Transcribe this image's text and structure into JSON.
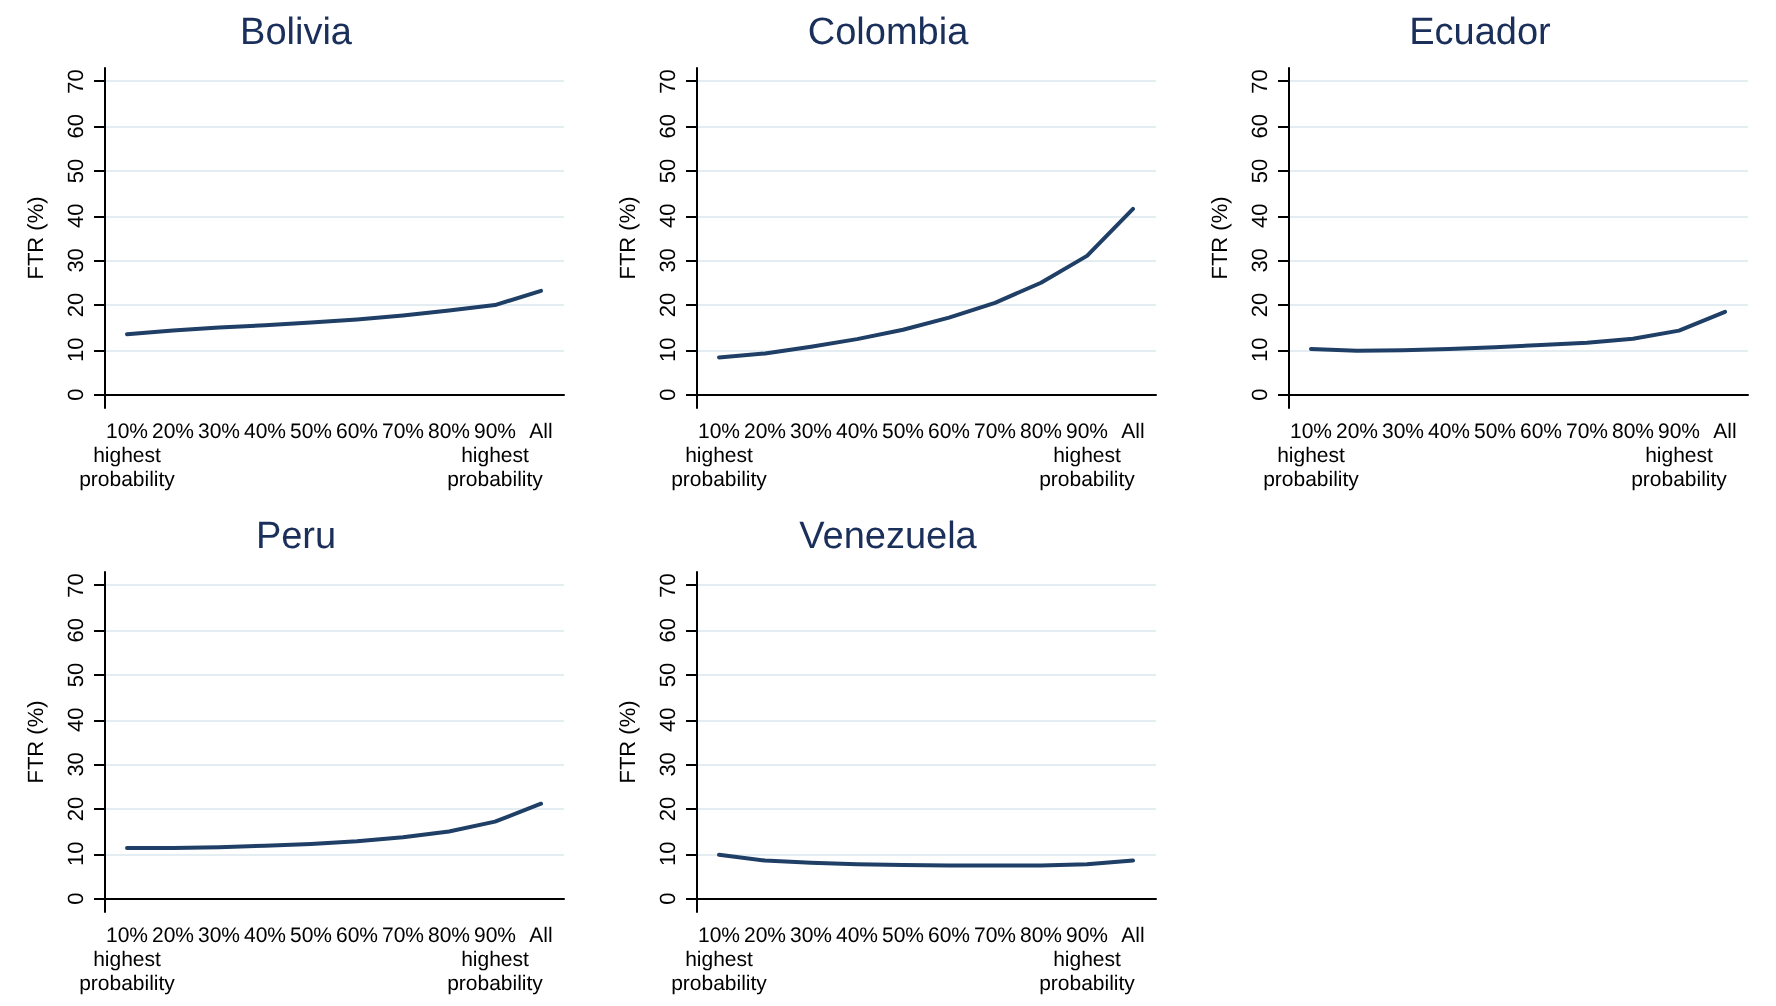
{
  "chart_data": [
    {
      "type": "line",
      "title": "Bolivia",
      "ylabel": "FTR (%)",
      "categories": [
        "10%\nhighest\nprobability",
        "20%",
        "30%",
        "40%",
        "50%",
        "60%",
        "70%",
        "80%",
        "90%\nhighest\nprobability",
        "All"
      ],
      "values": [
        13.5,
        14.3,
        15,
        15.5,
        16.1,
        16.8,
        17.7,
        18.8,
        20,
        23.2
      ],
      "color": "#1f3f66",
      "ylim": [
        -3,
        73
      ],
      "yticks": [
        0,
        10,
        20,
        30,
        40,
        50,
        60,
        70
      ],
      "grid": "y"
    },
    {
      "type": "line",
      "title": "Colombia",
      "ylabel": "FTR (%)",
      "categories": [
        "10%\nhighest\nprobability",
        "20%",
        "30%",
        "40%",
        "50%",
        "60%",
        "70%",
        "80%",
        "90%\nhighest\nprobability",
        "All"
      ],
      "values": [
        8.3,
        9.2,
        10.7,
        12.4,
        14.5,
        17.2,
        20.5,
        25,
        31,
        41.5
      ],
      "color": "#1f3f66",
      "ylim": [
        -3,
        73
      ],
      "yticks": [
        0,
        10,
        20,
        30,
        40,
        50,
        60,
        70
      ],
      "grid": "y"
    },
    {
      "type": "line",
      "title": "Ecuador",
      "ylabel": "FTR (%)",
      "categories": [
        "10%\nhighest\nprobability",
        "20%",
        "30%",
        "40%",
        "50%",
        "60%",
        "70%",
        "80%",
        "90%\nhighest\nprobability",
        "All"
      ],
      "values": [
        10.2,
        9.8,
        9.9,
        10.2,
        10.6,
        11.1,
        11.6,
        12.5,
        14.3,
        18.5
      ],
      "color": "#1f3f66",
      "ylim": [
        -3,
        73
      ],
      "yticks": [
        0,
        10,
        20,
        30,
        40,
        50,
        60,
        70
      ],
      "grid": "y"
    },
    {
      "type": "line",
      "title": "Peru",
      "ylabel": "FTR (%)",
      "categories": [
        "10%\nhighest\nprobability",
        "20%",
        "30%",
        "40%",
        "50%",
        "60%",
        "70%",
        "80%",
        "90%\nhighest\nprobability",
        "All"
      ],
      "values": [
        11.3,
        11.3,
        11.5,
        11.8,
        12.2,
        12.8,
        13.7,
        15,
        17.2,
        21.2
      ],
      "color": "#1f3f66",
      "ylim": [
        -3,
        73
      ],
      "yticks": [
        0,
        10,
        20,
        30,
        40,
        50,
        60,
        70
      ],
      "grid": "y"
    },
    {
      "type": "line",
      "title": "Venezuela",
      "ylabel": "FTR (%)",
      "categories": [
        "10%\nhighest\nprobability",
        "20%",
        "30%",
        "40%",
        "50%",
        "60%",
        "70%",
        "80%",
        "90%\nhighest\nprobability",
        "All"
      ],
      "values": [
        9.8,
        8.5,
        8,
        7.7,
        7.5,
        7.4,
        7.4,
        7.4,
        7.7,
        8.5
      ],
      "color": "#1f3f66",
      "ylim": [
        -3,
        73
      ],
      "yticks": [
        0,
        10,
        20,
        30,
        40,
        50,
        60,
        70
      ],
      "grid": "y"
    }
  ]
}
